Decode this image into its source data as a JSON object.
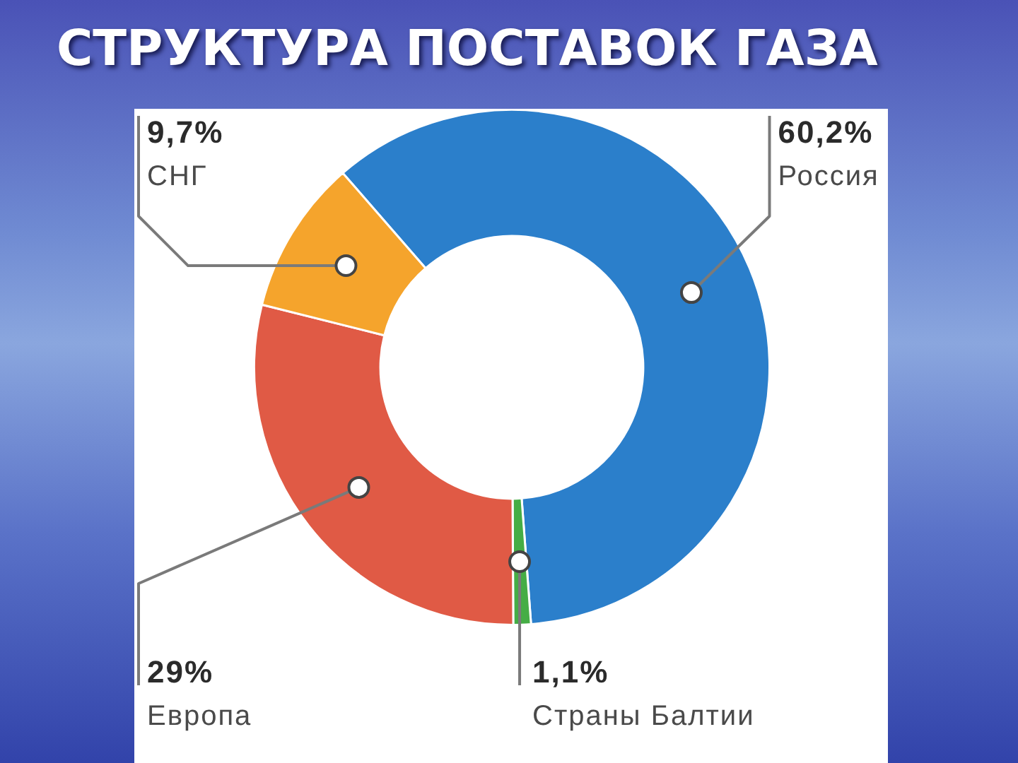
{
  "chart_data": {
    "type": "donut",
    "title": "СТРУКТУРА ПОСТАВОК ГАЗА",
    "categories": [
      "Россия",
      "Страны Балтии",
      "Европа",
      "СНГ"
    ],
    "values": [
      60.2,
      1.1,
      29,
      9.7
    ],
    "colors": [
      "#2b7fcb",
      "#45ad45",
      "#e05a45",
      "#f5a42c"
    ],
    "value_labels": [
      "60,2%",
      "1,1%",
      "29%",
      "9,7%"
    ]
  }
}
